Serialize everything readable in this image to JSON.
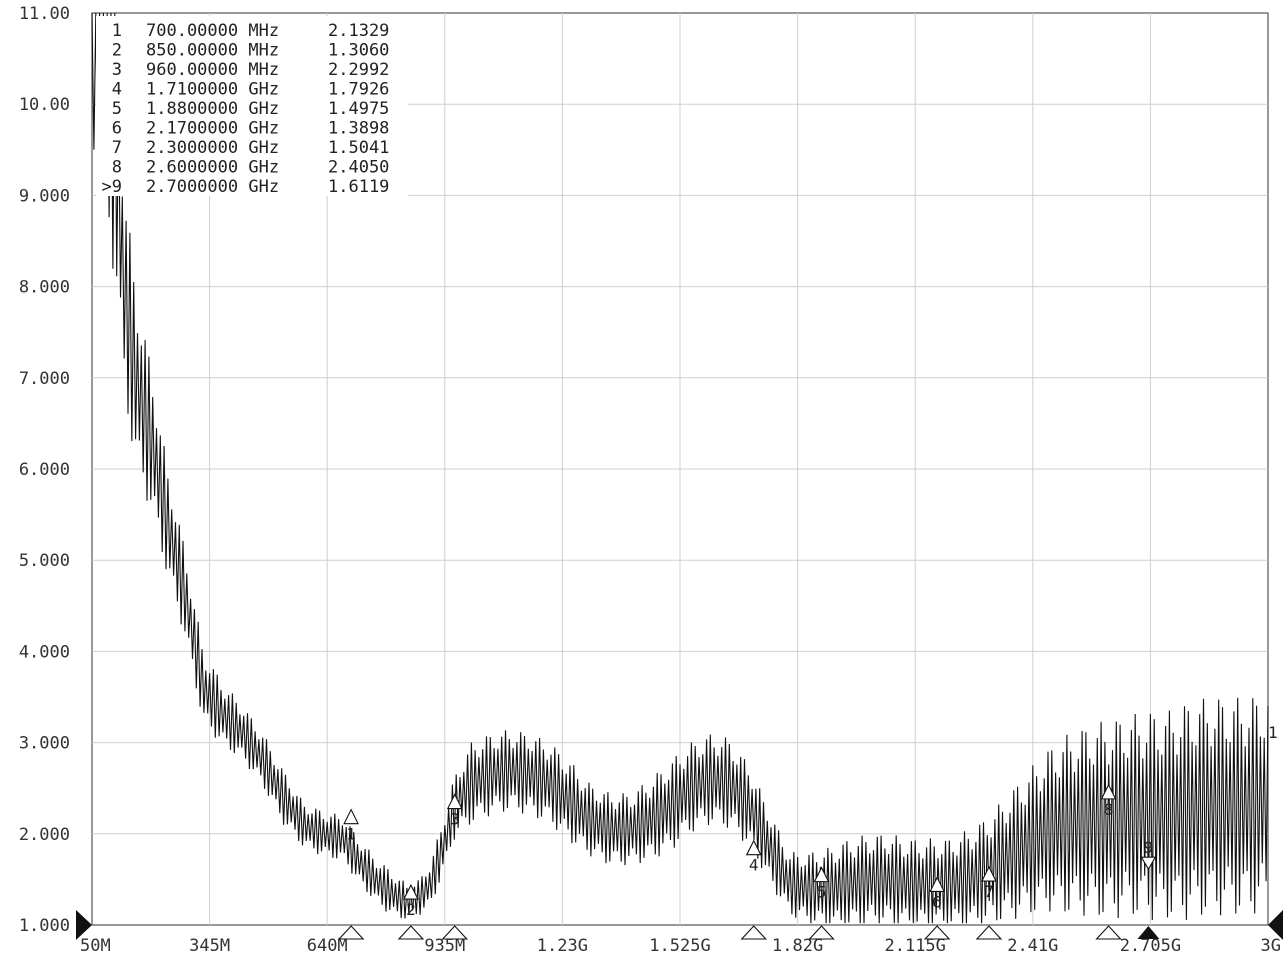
{
  "chart_data": {
    "type": "line",
    "title": "",
    "xlabel": "",
    "ylabel": "",
    "x_unit": "Hz",
    "xlim": [
      50000000,
      3000000000
    ],
    "ylim": [
      1.0,
      11.0
    ],
    "grid": true,
    "x_tick_labels": [
      "50M",
      "345M",
      "640M",
      "935M",
      "1.23G",
      "1.525G",
      "1.82G",
      "2.115G",
      "2.41G",
      "2.705G",
      "3G"
    ],
    "y_tick_labels": [
      "1.000",
      "2.000",
      "3.000",
      "4.000",
      "5.000",
      "6.000",
      "7.000",
      "8.000",
      "9.000",
      "10.00",
      "11.00"
    ],
    "reference_level_label": "1",
    "series": [
      {
        "x": [
          50000000,
          110000000,
          130000000,
          160000000,
          200000000,
          240000000,
          280000000,
          330000000,
          380000000,
          430000000,
          480000000,
          530000000,
          580000000,
          630000000,
          680000000,
          720000000,
          760000000,
          800000000,
          840000000,
          870000000,
          900000000,
          930000000,
          960000000,
          1000000000,
          1050000000,
          1100000000,
          1150000000,
          1200000000,
          1250000000,
          1300000000,
          1350000000,
          1400000000,
          1450000000,
          1500000000,
          1550000000,
          1600000000,
          1650000000,
          1700000000,
          1750000000,
          1800000000,
          1850000000,
          1900000000,
          1950000000,
          2000000000,
          2050000000,
          2100000000,
          2150000000,
          2200000000,
          2250000000,
          2300000000,
          2350000000,
          2400000000,
          2450000000,
          2500000000,
          2550000000,
          2600000000,
          2650000000,
          2700000000,
          2750000000,
          2800000000,
          2850000000,
          2900000000,
          2950000000,
          3000000000
        ],
        "y": [
          11.0,
          9.5,
          8.0,
          7.0,
          6.3,
          5.4,
          4.7,
          3.6,
          3.3,
          3.1,
          2.8,
          2.4,
          2.1,
          2.0,
          1.95,
          1.7,
          1.5,
          1.35,
          1.25,
          1.3,
          1.45,
          1.85,
          2.3,
          2.55,
          2.65,
          2.7,
          2.65,
          2.55,
          2.35,
          2.15,
          2.05,
          2.05,
          2.15,
          2.3,
          2.5,
          2.6,
          2.55,
          2.3,
          1.85,
          1.45,
          1.4,
          1.4,
          1.45,
          1.5,
          1.5,
          1.45,
          1.45,
          1.45,
          1.5,
          1.6,
          1.75,
          1.9,
          2.05,
          2.1,
          2.15,
          2.15,
          2.2,
          2.2,
          2.2,
          2.25,
          2.3,
          2.3,
          2.3,
          2.35
        ],
        "ripple": [
          1.5,
          1.5,
          1.2,
          1.0,
          0.8,
          0.6,
          0.5,
          0.4,
          0.35,
          0.3,
          0.3,
          0.3,
          0.25,
          0.25,
          0.25,
          0.25,
          0.25,
          0.25,
          0.2,
          0.2,
          0.25,
          0.3,
          0.35,
          0.45,
          0.45,
          0.45,
          0.45,
          0.45,
          0.45,
          0.4,
          0.4,
          0.4,
          0.45,
          0.5,
          0.5,
          0.5,
          0.5,
          0.45,
          0.4,
          0.35,
          0.4,
          0.45,
          0.5,
          0.5,
          0.5,
          0.5,
          0.5,
          0.5,
          0.55,
          0.6,
          0.7,
          0.8,
          0.9,
          1.0,
          1.05,
          1.1,
          1.1,
          1.15,
          1.15,
          1.2,
          1.2,
          1.2,
          1.2,
          1.2
        ]
      }
    ],
    "markers": [
      {
        "id": "1",
        "prefix": "",
        "freq_label": "700.00000 MHz",
        "value_label": "2.1329",
        "x": 700000000,
        "y": 2.1329
      },
      {
        "id": "2",
        "prefix": "",
        "freq_label": "850.00000 MHz",
        "value_label": "1.3060",
        "x": 850000000,
        "y": 1.306
      },
      {
        "id": "3",
        "prefix": "",
        "freq_label": "960.00000 MHz",
        "value_label": "2.2992",
        "x": 960000000,
        "y": 2.2992
      },
      {
        "id": "4",
        "prefix": "",
        "freq_label": "1.7100000 GHz",
        "value_label": "1.7926",
        "x": 1710000000,
        "y": 1.7926
      },
      {
        "id": "5",
        "prefix": "",
        "freq_label": "1.8800000 GHz",
        "value_label": "1.4975",
        "x": 1880000000,
        "y": 1.4975
      },
      {
        "id": "6",
        "prefix": "",
        "freq_label": "2.1700000 GHz",
        "value_label": "1.3898",
        "x": 2170000000,
        "y": 1.3898
      },
      {
        "id": "7",
        "prefix": "",
        "freq_label": "2.3000000 GHz",
        "value_label": "1.5041",
        "x": 2300000000,
        "y": 1.5041
      },
      {
        "id": "8",
        "prefix": "",
        "freq_label": "2.6000000 GHz",
        "value_label": "2.4050",
        "x": 2600000000,
        "y": 2.405
      },
      {
        "id": "9",
        "prefix": ">",
        "freq_label": "2.7000000 GHz",
        "value_label": "1.6119",
        "x": 2700000000,
        "y": 1.6119,
        "active": true
      }
    ],
    "colors": {
      "trace": "#111111",
      "grid": "#cfcfcf",
      "frame": "#555555",
      "text": "#222222"
    }
  }
}
